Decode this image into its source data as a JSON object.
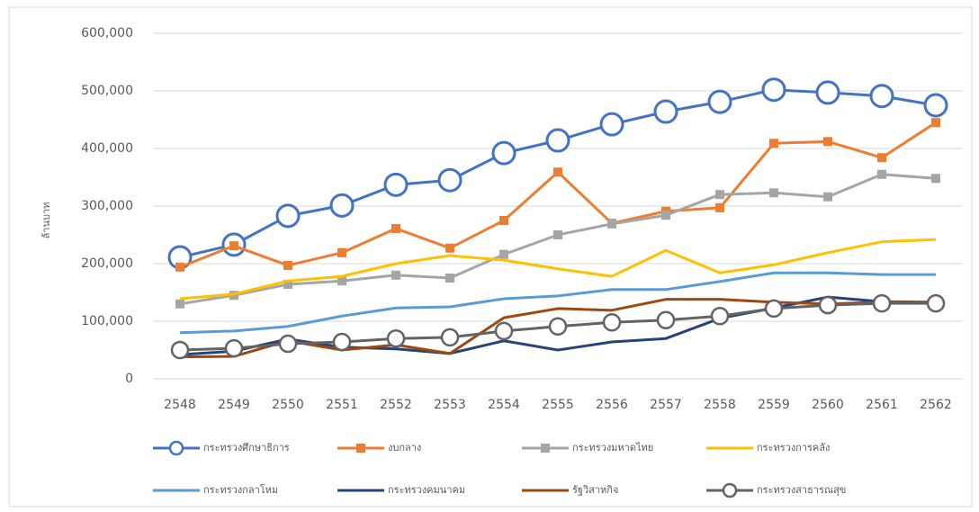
{
  "chart_data": {
    "type": "line",
    "y_label": "ล้านบาท",
    "categories": [
      "2548",
      "2549",
      "2550",
      "2551",
      "2552",
      "2553",
      "2554",
      "2555",
      "2556",
      "2557",
      "2558",
      "2559",
      "2560",
      "2561",
      "2562"
    ],
    "ylim": [
      0,
      600000
    ],
    "yticks": [
      0,
      {
        "value": 100000,
        "label": "100,000"
      },
      {
        "value": 200000,
        "label": "200,000"
      },
      {
        "value": 300000,
        "label": "300,000"
      },
      {
        "value": 400000,
        "label": "400,000"
      },
      {
        "value": 500000,
        "label": "500,000"
      },
      {
        "value": 600000,
        "label": "600,000"
      }
    ],
    "grid": true,
    "legend": "bottom",
    "series": [
      {
        "name": "กระทรวงศึกษาธิการ",
        "color": "#4472c4",
        "marker": "circle",
        "values": [
          211000,
          233000,
          283000,
          301000,
          337000,
          345000,
          392000,
          414000,
          442000,
          464000,
          481000,
          502000,
          497000,
          491000,
          475000
        ]
      },
      {
        "name": "งบกลาง",
        "color": "#ed7d31",
        "marker": "square",
        "values": [
          194000,
          231000,
          197000,
          219000,
          261000,
          227000,
          275000,
          359000,
          270000,
          291000,
          297000,
          409000,
          412000,
          384000,
          445000
        ]
      },
      {
        "name": "กระทรวงมหาดไทย",
        "color": "#a5a5a5",
        "marker": "square",
        "values": [
          130000,
          145000,
          164000,
          170000,
          180000,
          175000,
          216000,
          250000,
          269000,
          284000,
          320000,
          323000,
          316000,
          355000,
          348000
        ]
      },
      {
        "name": "กระทรวงการคลัง",
        "color": "#ffc000",
        "marker": "none",
        "values": [
          139000,
          147000,
          170000,
          178000,
          200000,
          214000,
          206000,
          191000,
          178000,
          223000,
          184000,
          198000,
          219000,
          238000,
          242000
        ]
      },
      {
        "name": "กระทรวงกลาโหม",
        "color": "#5b9bd5",
        "marker": "none",
        "values": [
          80000,
          83000,
          91000,
          109000,
          123000,
          125000,
          139000,
          144000,
          155000,
          155000,
          169000,
          184000,
          184000,
          181000,
          181000
        ]
      },
      {
        "name": "กระทรวงคมนาคม",
        "color": "#264478",
        "marker": "none",
        "values": [
          42000,
          48000,
          69000,
          55000,
          52000,
          44000,
          66000,
          50000,
          64000,
          70000,
          105000,
          123000,
          142000,
          134000,
          133000
        ]
      },
      {
        "name": "รัฐวิสาหกิจ",
        "color": "#9e480e",
        "marker": "none",
        "values": [
          38000,
          39000,
          66000,
          50000,
          59000,
          44000,
          106000,
          122000,
          119000,
          138000,
          138000,
          133000,
          130000,
          133000,
          133000
        ]
      },
      {
        "name": "กระทรวงสาธารณสุข",
        "color": "#636363",
        "marker": "circle",
        "values": [
          50000,
          53000,
          61000,
          64000,
          70000,
          72000,
          83000,
          91000,
          98000,
          102000,
          109000,
          122000,
          128000,
          131000,
          131000
        ]
      }
    ]
  }
}
